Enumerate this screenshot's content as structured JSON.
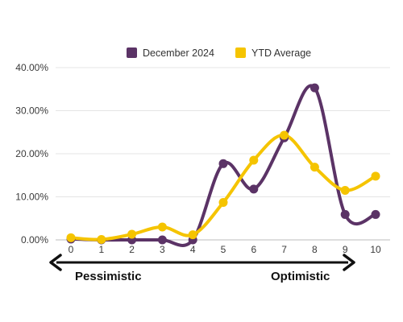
{
  "chart_data": {
    "type": "line",
    "x": [
      0,
      1,
      2,
      3,
      4,
      5,
      6,
      7,
      8,
      9,
      10
    ],
    "y_ticks": [
      "0.00%",
      "10.00%",
      "20.00%",
      "30.00%",
      "40.00%"
    ],
    "ylim": [
      0,
      40
    ],
    "grid": true,
    "legend_position": "top",
    "series": [
      {
        "name": "December 2024",
        "color": "#5b3366",
        "values": [
          0.2,
          0.0,
          0.0,
          0.0,
          0.0,
          17.7,
          11.8,
          23.7,
          35.3,
          5.9,
          5.9
        ]
      },
      {
        "name": "YTD Average",
        "color": "#f5c400",
        "values": [
          0.5,
          0.1,
          1.3,
          3.0,
          1.2,
          8.7,
          18.5,
          24.3,
          16.9,
          11.5,
          14.8
        ]
      }
    ],
    "scale_labels": {
      "left": "Pessimistic",
      "right": "Optimistic"
    }
  }
}
